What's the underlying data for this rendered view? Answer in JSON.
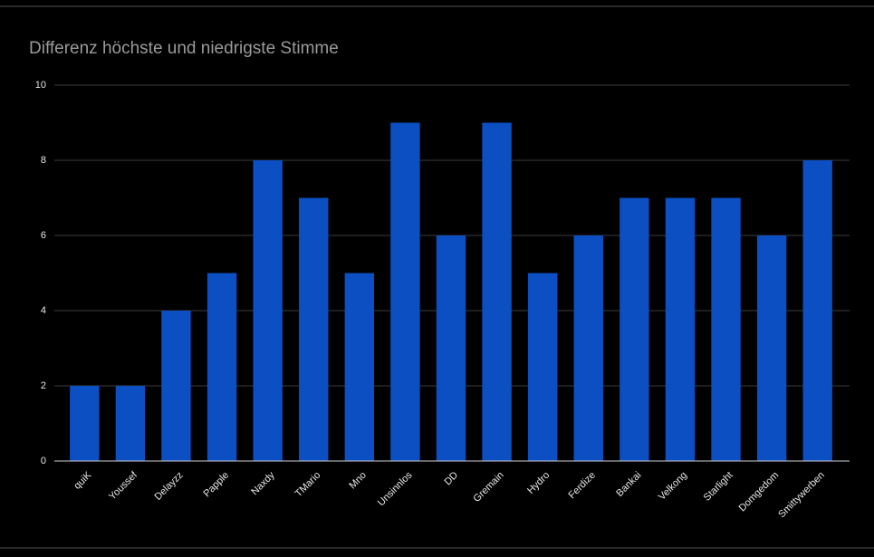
{
  "chart_data": {
    "type": "bar",
    "title": "Differenz höchste und niedrigste Stimme",
    "categories": [
      "quiK",
      "Youssef",
      "Delayzz",
      "Papple",
      "Naxdy",
      "TMario",
      "Mno",
      "Unsinnlos",
      "DD",
      "Gremain",
      "Hydro",
      "Ferdize",
      "Bankai",
      "Velkong",
      "Starlight",
      "Domgedom",
      "Smittywerben"
    ],
    "values": [
      2,
      2,
      4,
      5,
      8,
      7,
      5,
      9,
      6,
      9,
      5,
      6,
      7,
      7,
      7,
      6,
      8
    ],
    "color": "#0b4fc2",
    "ylim": [
      0,
      10
    ],
    "yticks": [
      0,
      2,
      4,
      6,
      8,
      10
    ],
    "grid": true
  }
}
